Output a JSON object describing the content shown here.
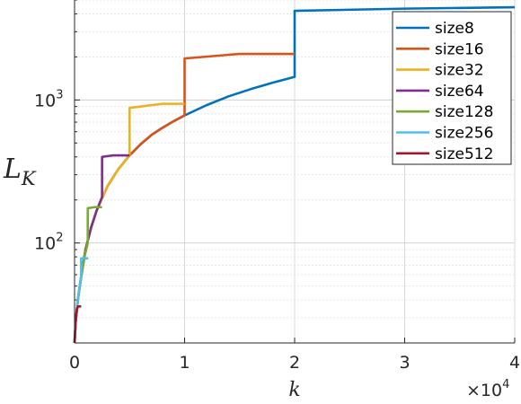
{
  "chart_data": {
    "type": "line",
    "xlabel": "k",
    "ylabel_base": "L",
    "ylabel_sub": "K",
    "xlim": [
      0,
      40000
    ],
    "ylim": [
      20,
      5000
    ],
    "y_scale": "log",
    "grid": true,
    "legend_position": "top-right",
    "x_ticks": [
      0,
      10000,
      20000,
      30000,
      40000
    ],
    "x_tick_labels": [
      "0",
      "1",
      "2",
      "3",
      "4"
    ],
    "x_multiplier": {
      "base": "×10",
      "exp": "4"
    },
    "y_ticks": [
      {
        "value": 100,
        "base": "10",
        "exp": "2"
      },
      {
        "value": 1000,
        "base": "10",
        "exp": "3"
      }
    ],
    "series": [
      {
        "name": "size8",
        "color": "#0072BD",
        "points": [
          [
            0,
            20
          ],
          [
            100,
            28
          ],
          [
            300,
            40
          ],
          [
            600,
            58
          ],
          [
            1000,
            90
          ],
          [
            1500,
            128
          ],
          [
            2000,
            168
          ],
          [
            3000,
            250
          ],
          [
            4000,
            330
          ],
          [
            5000,
            410
          ],
          [
            6000,
            490
          ],
          [
            7000,
            570
          ],
          [
            8000,
            640
          ],
          [
            9000,
            710
          ],
          [
            10000,
            780
          ],
          [
            12000,
            920
          ],
          [
            14000,
            1060
          ],
          [
            16000,
            1190
          ],
          [
            18000,
            1320
          ],
          [
            20000,
            1450
          ],
          [
            20000,
            4200
          ],
          [
            30000,
            4350
          ],
          [
            40000,
            4450
          ]
        ]
      },
      {
        "name": "size16",
        "color": "#D95319",
        "points": [
          [
            0,
            20
          ],
          [
            100,
            28
          ],
          [
            300,
            40
          ],
          [
            600,
            58
          ],
          [
            1000,
            90
          ],
          [
            1500,
            128
          ],
          [
            2000,
            168
          ],
          [
            3000,
            250
          ],
          [
            4000,
            330
          ],
          [
            5000,
            410
          ],
          [
            6000,
            490
          ],
          [
            7000,
            570
          ],
          [
            8000,
            640
          ],
          [
            9000,
            710
          ],
          [
            10000,
            780
          ],
          [
            10000,
            1950
          ],
          [
            15000,
            2100
          ],
          [
            20000,
            2100
          ]
        ]
      },
      {
        "name": "size32",
        "color": "#EDB120",
        "points": [
          [
            0,
            20
          ],
          [
            100,
            28
          ],
          [
            300,
            40
          ],
          [
            600,
            58
          ],
          [
            1000,
            90
          ],
          [
            1500,
            128
          ],
          [
            2000,
            168
          ],
          [
            3000,
            250
          ],
          [
            4000,
            330
          ],
          [
            5000,
            410
          ],
          [
            5000,
            880
          ],
          [
            8000,
            940
          ],
          [
            10000,
            940
          ]
        ]
      },
      {
        "name": "size64",
        "color": "#7E2F8E",
        "points": [
          [
            0,
            20
          ],
          [
            100,
            28
          ],
          [
            300,
            40
          ],
          [
            600,
            58
          ],
          [
            1000,
            90
          ],
          [
            1500,
            128
          ],
          [
            2000,
            168
          ],
          [
            2500,
            210
          ],
          [
            2500,
            400
          ],
          [
            3500,
            410
          ],
          [
            5000,
            410
          ]
        ]
      },
      {
        "name": "size128",
        "color": "#77AC30",
        "points": [
          [
            0,
            20
          ],
          [
            100,
            28
          ],
          [
            300,
            40
          ],
          [
            600,
            58
          ],
          [
            900,
            80
          ],
          [
            1200,
            100
          ],
          [
            1200,
            175
          ],
          [
            1800,
            178
          ],
          [
            2500,
            178
          ]
        ]
      },
      {
        "name": "size256",
        "color": "#4DBEEE",
        "points": [
          [
            0,
            20
          ],
          [
            100,
            28
          ],
          [
            300,
            40
          ],
          [
            500,
            52
          ],
          [
            600,
            58
          ],
          [
            600,
            78
          ],
          [
            900,
            78
          ],
          [
            1250,
            78
          ]
        ]
      },
      {
        "name": "size512",
        "color": "#A2142F",
        "points": [
          [
            0,
            20
          ],
          [
            100,
            28
          ],
          [
            200,
            34
          ],
          [
            300,
            36
          ],
          [
            450,
            36
          ],
          [
            600,
            36
          ]
        ]
      }
    ]
  }
}
